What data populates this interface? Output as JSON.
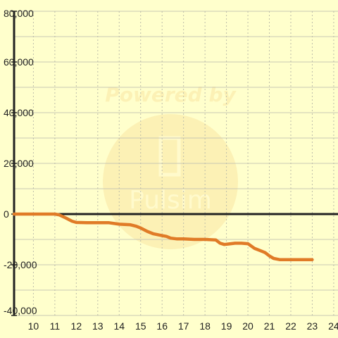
{
  "watermark": {
    "line1": "Powered by",
    "line2": "Pulsim"
  },
  "chart_data": {
    "type": "line",
    "title": "",
    "xlabel": "",
    "ylabel": "",
    "xlim": [
      9.1,
      24.2
    ],
    "ylim": [
      -40000,
      80000
    ],
    "x_ticks": [
      10,
      11,
      12,
      13,
      14,
      15,
      16,
      17,
      18,
      19,
      20,
      21,
      22,
      23,
      24
    ],
    "y_ticks": [
      -40000,
      -20000,
      0,
      20000,
      40000,
      60000,
      80000
    ],
    "y_tick_labels": [
      "-40,000",
      "-20,000",
      "0",
      "20,000",
      "40,000",
      "60,000",
      "80,000"
    ],
    "grid": true,
    "series": [
      {
        "color": "#e07b27",
        "x": [
          9.1,
          10,
          11,
          11.2,
          11.5,
          11.8,
          12,
          12.5,
          13,
          13.5,
          14,
          14.5,
          14.8,
          15,
          15.3,
          15.6,
          16,
          16.2,
          16.4,
          16.7,
          17,
          17.5,
          18,
          18.5,
          18.7,
          18.9,
          19.1,
          19.4,
          19.7,
          20,
          20.3,
          20.6,
          20.8,
          21,
          21.2,
          21.5,
          22,
          22.5,
          23
        ],
        "y": [
          0,
          0,
          0,
          -300,
          -1500,
          -2800,
          -3300,
          -3400,
          -3400,
          -3400,
          -4000,
          -4200,
          -4800,
          -5500,
          -6800,
          -7800,
          -8500,
          -8800,
          -9500,
          -9800,
          -9800,
          -10000,
          -10000,
          -10200,
          -11500,
          -12000,
          -11800,
          -11500,
          -11500,
          -11700,
          -13500,
          -14500,
          -15200,
          -16500,
          -17500,
          -18000,
          -18000,
          -18000,
          -18000
        ]
      }
    ]
  }
}
